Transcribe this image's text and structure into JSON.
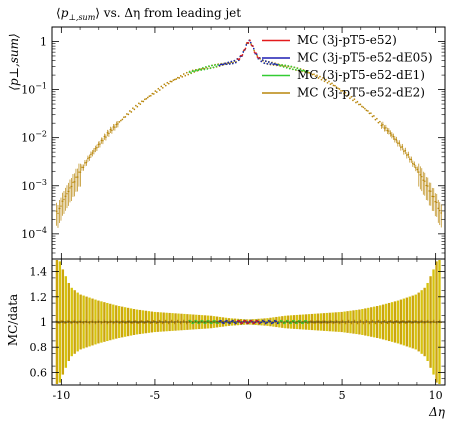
{
  "chart_data": {
    "type": "line",
    "title": "⟨p⊥,sum⟩ vs. Δη from leading jet",
    "title_parts": {
      "lead": "⟨",
      "p": "p",
      "sub": "⊥,sum",
      "rest": "⟩ vs. Δη from leading jet"
    },
    "ylabel_top": "⟨p⊥,sum⟩",
    "ylabel_bottom": "MC/data",
    "xlabel": "Δη",
    "xlim": [
      -10.5,
      10.5
    ],
    "ylim_top": [
      3e-05,
      2.0
    ],
    "ylog": true,
    "ylim_bottom": [
      0.5,
      1.5
    ],
    "x_ticks": [
      -10,
      -5,
      0,
      5,
      10
    ],
    "x_tick_labels": [
      "-10",
      "-5",
      "0",
      "5",
      "10"
    ],
    "y_ticks_top": [
      {
        "value": 1,
        "base": "1",
        "exp": ""
      },
      {
        "value": 0.1,
        "base": "10",
        "exp": "−1"
      },
      {
        "value": 0.01,
        "base": "10",
        "exp": "−2"
      },
      {
        "value": 0.001,
        "base": "10",
        "exp": "−3"
      },
      {
        "value": 0.0001,
        "base": "10",
        "exp": "−4"
      }
    ],
    "y_ticks_bottom": [
      "0.6",
      "0.8",
      "1",
      "1.2",
      "1.4"
    ],
    "shape": {
      "x": [
        0,
        0.15,
        0.3,
        0.5,
        0.75,
        1,
        1.5,
        2,
        2.5,
        3,
        3.5,
        4,
        4.5,
        5,
        5.5,
        6,
        6.5,
        7,
        7.5,
        8,
        8.5,
        9,
        9.5,
        10,
        10.2
      ],
      "y": [
        1.05,
        0.85,
        0.6,
        0.45,
        0.38,
        0.36,
        0.33,
        0.3,
        0.27,
        0.24,
        0.2,
        0.16,
        0.125,
        0.09,
        0.065,
        0.046,
        0.031,
        0.02,
        0.013,
        0.0075,
        0.0042,
        0.0021,
        0.001,
        0.00045,
        0.00028
      ]
    },
    "ratio_err": {
      "x": [
        0,
        1,
        2,
        3,
        4,
        5,
        6,
        7,
        8,
        9,
        9.5,
        10,
        10.2
      ],
      "half": [
        0.02,
        0.03,
        0.05,
        0.06,
        0.07,
        0.08,
        0.1,
        0.13,
        0.17,
        0.22,
        0.28,
        0.45,
        0.55
      ]
    },
    "series": [
      {
        "name": "MC (3j-pT5-e52)",
        "color": "#e31a1c",
        "range": [
          -0.6,
          0.6
        ]
      },
      {
        "name": "MC (3j-pT5-e52-dE05)",
        "color": "#1f1fb4",
        "range": [
          -1.6,
          1.6
        ]
      },
      {
        "name": "MC (3j-pT5-e52-dE1)",
        "color": "#33cc33",
        "range": [
          -3.2,
          3.2
        ]
      },
      {
        "name": "MC (3j-pT5-e52-dE2)",
        "color": "#b8860b",
        "range": [
          -10.3,
          10.3
        ]
      }
    ],
    "band_color": "#d4c000",
    "band_outer_color": "#c9a000",
    "legend_position": "top-right"
  }
}
